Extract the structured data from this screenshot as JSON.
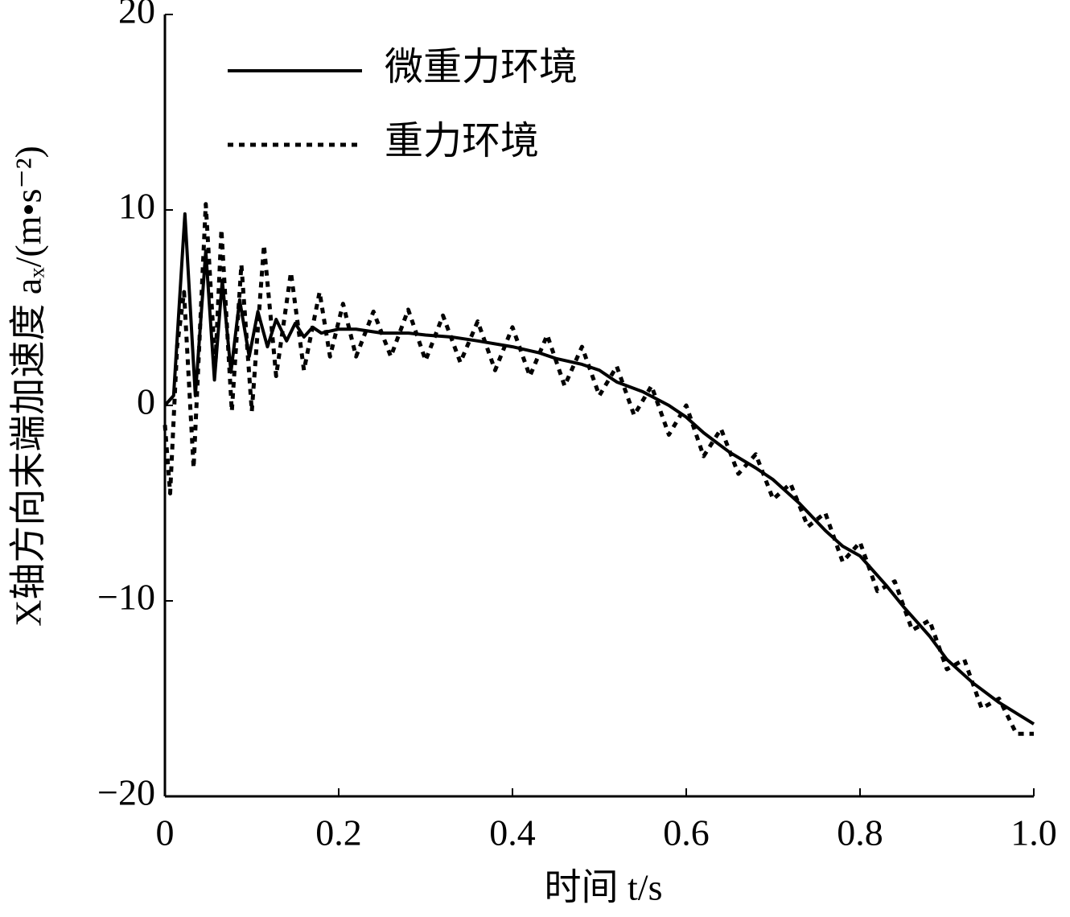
{
  "chart_data": {
    "type": "line",
    "xlabel": "时间 t/s",
    "ylabel": "X轴方向末端加速度 aₓ/(m•s⁻²)",
    "xlim": [
      0,
      1
    ],
    "xticks": [
      0,
      0.2,
      0.4,
      0.6,
      0.8,
      {
        "value": 1,
        "label": "1.0"
      }
    ],
    "ylim": [
      -20,
      20
    ],
    "yticks": [
      20,
      10,
      0,
      {
        "value": -10,
        "label": "−10"
      },
      {
        "value": -20,
        "label": "−20"
      }
    ],
    "legend": "upper left",
    "series": [
      {
        "name": "微重力环境",
        "color": "#000000",
        "style": "solid",
        "x": [
          0,
          0.01,
          0.023,
          0.035,
          0.047,
          0.057,
          0.066,
          0.076,
          0.086,
          0.097,
          0.107,
          0.118,
          0.128,
          0.14,
          0.15,
          0.16,
          0.17,
          0.18,
          0.2,
          0.22,
          0.25,
          0.28,
          0.3,
          0.33,
          0.36,
          0.4,
          0.43,
          0.45,
          0.48,
          0.5,
          0.52,
          0.55,
          0.58,
          0.6,
          0.62,
          0.65,
          0.68,
          0.7,
          0.73,
          0.76,
          0.78,
          0.8,
          0.83,
          0.85,
          0.88,
          0.9,
          0.93,
          0.96,
          1.0
        ],
        "values": [
          0,
          0.5,
          9.8,
          0.5,
          7.9,
          1.3,
          6.4,
          1.7,
          5.4,
          2.5,
          4.8,
          3.0,
          4.4,
          3.3,
          4.2,
          3.5,
          4.0,
          3.7,
          3.9,
          3.9,
          3.7,
          3.7,
          3.6,
          3.5,
          3.3,
          3.0,
          2.7,
          2.4,
          2.1,
          1.8,
          1.2,
          0.7,
          0.0,
          -0.6,
          -1.4,
          -2.4,
          -3.2,
          -3.8,
          -5.0,
          -6.4,
          -7.2,
          -7.7,
          -9.2,
          -10.3,
          -11.8,
          -13.0,
          -14.2,
          -15.2,
          -16.3
        ]
      },
      {
        "name": "重力环境",
        "color": "#000000",
        "style": "dotted",
        "x": [
          0,
          0.006,
          0.014,
          0.022,
          0.033,
          0.047,
          0.058,
          0.065,
          0.077,
          0.088,
          0.1,
          0.114,
          0.128,
          0.145,
          0.16,
          0.178,
          0.19,
          0.205,
          0.22,
          0.24,
          0.26,
          0.28,
          0.3,
          0.32,
          0.34,
          0.36,
          0.38,
          0.4,
          0.42,
          0.44,
          0.46,
          0.48,
          0.5,
          0.52,
          0.54,
          0.56,
          0.58,
          0.6,
          0.62,
          0.64,
          0.66,
          0.68,
          0.7,
          0.72,
          0.74,
          0.76,
          0.78,
          0.8,
          0.82,
          0.84,
          0.86,
          0.88,
          0.9,
          0.92,
          0.94,
          0.96,
          0.98,
          1.0
        ],
        "values": [
          -1,
          -4.5,
          3,
          5.8,
          -3.2,
          10.3,
          2,
          9,
          -0.3,
          7.2,
          -0.3,
          8.2,
          1.5,
          6.8,
          1.8,
          5.8,
          2.5,
          5.2,
          2.5,
          4.8,
          2.5,
          4.9,
          2.3,
          4.6,
          2.2,
          4.3,
          1.8,
          4.0,
          1.5,
          3.6,
          1.0,
          3.0,
          0.5,
          2.0,
          -0.5,
          1.0,
          -1.5,
          0,
          -2.6,
          -1.2,
          -3.5,
          -2.5,
          -4.8,
          -4,
          -6.2,
          -5.5,
          -8,
          -7,
          -9.5,
          -9,
          -11.5,
          -11,
          -13.5,
          -13,
          -15.5,
          -15,
          -16.8,
          -16.8
        ]
      }
    ]
  }
}
